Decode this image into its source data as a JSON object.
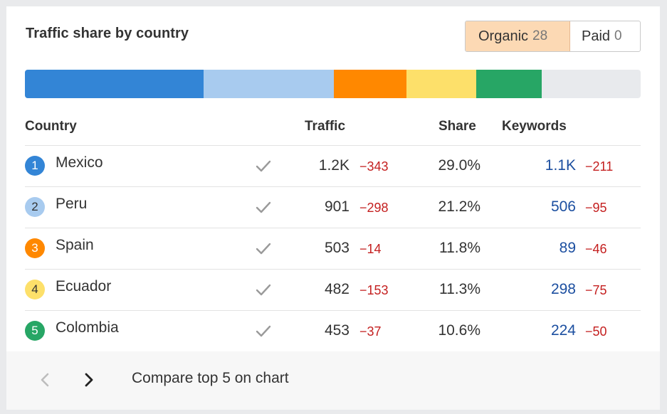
{
  "title": "Traffic share by country",
  "tabs": [
    {
      "label": "Organic",
      "count": "28",
      "active": true
    },
    {
      "label": "Paid",
      "count": "0",
      "active": false
    }
  ],
  "share_bar": [
    {
      "country": "Mexico",
      "share": 29.0,
      "color": "#3385d6"
    },
    {
      "country": "Peru",
      "share": 21.2,
      "color": "#a8cbef"
    },
    {
      "country": "Spain",
      "share": 11.8,
      "color": "#ff8800"
    },
    {
      "country": "Ecuador",
      "share": 11.3,
      "color": "#fde06a"
    },
    {
      "country": "Colombia",
      "share": 10.6,
      "color": "#27a665"
    }
  ],
  "table": {
    "headers": {
      "country": "Country",
      "traffic": "Traffic",
      "share": "Share",
      "keywords": "Keywords"
    },
    "rows": [
      {
        "rank": "1",
        "country": "Mexico",
        "traffic": "1.2K",
        "traffic_change": "−343",
        "share": "29.0%",
        "keywords": "1.1K",
        "keywords_change": "−211",
        "badge_color": "#3385d6",
        "badge_text_color": "#ffffff"
      },
      {
        "rank": "2",
        "country": "Peru",
        "traffic": "901",
        "traffic_change": "−298",
        "share": "21.2%",
        "keywords": "506",
        "keywords_change": "−95",
        "badge_color": "#a8cbef",
        "badge_text_color": "#333333"
      },
      {
        "rank": "3",
        "country": "Spain",
        "traffic": "503",
        "traffic_change": "−14",
        "share": "11.8%",
        "keywords": "89",
        "keywords_change": "−46",
        "badge_color": "#ff8800",
        "badge_text_color": "#ffffff"
      },
      {
        "rank": "4",
        "country": "Ecuador",
        "traffic": "482",
        "traffic_change": "−153",
        "share": "11.3%",
        "keywords": "298",
        "keywords_change": "−75",
        "badge_color": "#fde06a",
        "badge_text_color": "#333333"
      },
      {
        "rank": "5",
        "country": "Colombia",
        "traffic": "453",
        "traffic_change": "−37",
        "share": "10.6%",
        "keywords": "224",
        "keywords_change": "−50",
        "badge_color": "#27a665",
        "badge_text_color": "#ffffff"
      }
    ]
  },
  "footer": {
    "prev_icon": "chevron-left-icon",
    "next_icon": "chevron-right-icon",
    "compare_label": "Compare top 5 on chart"
  }
}
